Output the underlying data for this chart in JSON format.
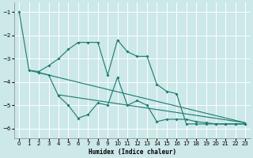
{
  "background_color": "#cce8e8",
  "grid_color": "#ffffff",
  "line_color": "#1a7a6e",
  "xlabel": "Humidex (Indice chaleur)",
  "xlim": [
    -0.5,
    23.5
  ],
  "ylim": [
    -6.4,
    -0.6
  ],
  "xticks": [
    0,
    1,
    2,
    3,
    4,
    5,
    6,
    7,
    8,
    9,
    10,
    11,
    12,
    13,
    14,
    15,
    16,
    17,
    18,
    19,
    20,
    21,
    22,
    23
  ],
  "yticks": [
    -6,
    -5,
    -4,
    -3,
    -2,
    -1
  ],
  "line1_x": [
    0,
    1,
    2,
    3,
    4,
    5,
    6,
    7,
    8,
    9,
    10,
    11,
    12,
    13,
    14,
    15,
    16,
    17,
    18,
    19,
    20,
    21,
    22,
    23
  ],
  "line1_y": [
    -1.0,
    -3.5,
    -3.55,
    -3.3,
    -3.0,
    -2.6,
    -2.3,
    -2.3,
    -2.3,
    -3.7,
    -2.2,
    -2.7,
    -2.9,
    -2.9,
    -4.1,
    -4.4,
    -4.5,
    -5.8,
    -5.8,
    -5.8,
    -5.8,
    -5.8,
    -5.8,
    -5.8
  ],
  "line2_x": [
    2,
    3,
    4,
    5,
    6,
    7,
    8,
    9,
    10,
    11,
    12,
    13,
    14,
    15,
    16,
    17,
    18,
    19,
    20,
    21,
    22,
    23
  ],
  "line2_y": [
    -3.6,
    -3.7,
    -4.6,
    -5.0,
    -5.55,
    -5.4,
    -4.9,
    -5.0,
    -3.8,
    -5.0,
    -4.8,
    -5.0,
    -5.7,
    -5.6,
    -5.6,
    -5.6,
    -5.7,
    -5.75,
    -5.8,
    -5.8,
    -5.8,
    -5.8
  ],
  "line3_x": [
    1,
    23
  ],
  "line3_y": [
    -3.5,
    -5.75
  ],
  "line4_x": [
    4,
    23
  ],
  "line4_y": [
    -4.55,
    -5.75
  ]
}
